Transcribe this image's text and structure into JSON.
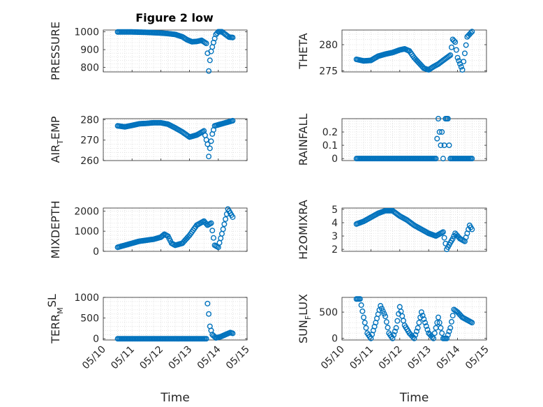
{
  "figure": {
    "title": "Figure 2 low",
    "xlabel": "Time"
  },
  "colors": {
    "marker": "#0072BD",
    "axis": "#262626",
    "grid": "#dcdcdc",
    "background": "#ffffff"
  },
  "chart_data": [
    {
      "id": "pressure",
      "type": "scatter",
      "title": "Figure 2 low",
      "ylabel": "PRESSURE",
      "ylim": [
        775,
        1010
      ],
      "yticks": [
        800,
        900,
        1000
      ],
      "xlim": [
        "05/10",
        "05/15"
      ],
      "xticks": [],
      "xlabel": "",
      "grid": true,
      "marker": "circle",
      "x": [
        "05/10 12:00",
        "05/10 18:00",
        "05/11 00:00",
        "05/11 06:00",
        "05/11 12:00",
        "05/11 18:00",
        "05/12 00:00",
        "05/12 06:00",
        "05/12 12:00",
        "05/12 18:00",
        "05/12 22:00",
        "05/13 02:00",
        "05/13 06:00",
        "05/13 10:00",
        "05/13 14:00",
        "05/13 15:00",
        "05/13 16:00",
        "05/13 17:00",
        "05/13 18:00",
        "05/13 20:00",
        "05/13 22:00",
        "05/14 00:00",
        "05/14 03:00",
        "05/14 06:00",
        "05/14 09:00",
        "05/14 12:00"
      ],
      "y": [
        999,
        999,
        999,
        998,
        997,
        995,
        993,
        990,
        985,
        972,
        955,
        944,
        946,
        952,
        935,
        880,
        780,
        840,
        890,
        940,
        985,
        1000,
        1000,
        985,
        970,
        968
      ]
    },
    {
      "id": "theta",
      "type": "scatter",
      "ylabel": "THETA",
      "ylim": [
        274.8,
        282.8
      ],
      "yticks": [
        275,
        280
      ],
      "xlim": [
        "05/10",
        "05/15"
      ],
      "xticks": [],
      "xlabel": "",
      "grid": true,
      "marker": "circle",
      "x": [
        "05/10 12:00",
        "05/10 18:00",
        "05/11 00:00",
        "05/11 06:00",
        "05/11 12:00",
        "05/11 18:00",
        "05/12 00:00",
        "05/12 04:00",
        "05/12 08:00",
        "05/12 12:00",
        "05/12 16:00",
        "05/12 20:00",
        "05/13 00:00",
        "05/13 04:00",
        "05/13 08:00",
        "05/13 12:00",
        "05/13 15:00",
        "05/13 18:00",
        "05/13 20:00",
        "05/13 22:00",
        "05/14 00:00",
        "05/14 04:00",
        "05/14 08:00",
        "05/14 12:00"
      ],
      "y": [
        277.2,
        276.9,
        277.0,
        277.8,
        278.2,
        278.5,
        279.0,
        279.2,
        278.8,
        277.5,
        276.5,
        275.5,
        275.2,
        275.8,
        276.3,
        277.0,
        277.5,
        278.0,
        281.0,
        280.5,
        277.5,
        275.2,
        281.5,
        282.5
      ]
    },
    {
      "id": "air_temp",
      "type": "scatter",
      "ylabel": "AIR_TEMP",
      "ylim": [
        260,
        280.5
      ],
      "yticks": [
        260,
        270,
        280
      ],
      "xlim": [
        "05/10",
        "05/15"
      ],
      "xticks": [],
      "xlabel": "",
      "grid": true,
      "marker": "circle",
      "x": [
        "05/10 12:00",
        "05/10 18:00",
        "05/11 00:00",
        "05/11 06:00",
        "05/11 12:00",
        "05/11 18:00",
        "05/12 00:00",
        "05/12 06:00",
        "05/12 12:00",
        "05/12 18:00",
        "05/13 00:00",
        "05/13 06:00",
        "05/13 12:00",
        "05/13 15:00",
        "05/13 16:00",
        "05/13 17:00",
        "05/13 19:00",
        "05/13 21:00",
        "05/14 00:00",
        "05/14 06:00",
        "05/14 12:00"
      ],
      "y": [
        277,
        276.5,
        277.2,
        278,
        278.2,
        278.5,
        278.5,
        277.8,
        276,
        274,
        271.5,
        272.5,
        274.5,
        268,
        262,
        266,
        273,
        277,
        277.5,
        278.5,
        279.5
      ]
    },
    {
      "id": "rainfall",
      "type": "scatter",
      "ylabel": "RAINFALL",
      "ylim": [
        -0.015,
        0.3
      ],
      "yticks": [
        0,
        0.1,
        0.2
      ],
      "xlim": [
        "05/10",
        "05/15"
      ],
      "xticks": [],
      "xlabel": "",
      "grid": true,
      "marker": "circle",
      "x": [
        "05/10 12:00",
        "05/10 18:00",
        "05/11 00:00",
        "05/11 06:00",
        "05/11 12:00",
        "05/11 18:00",
        "05/12 00:00",
        "05/12 06:00",
        "05/12 12:00",
        "05/12 18:00",
        "05/13 00:00",
        "05/13 06:00",
        "05/13 08:00",
        "05/13 09:00",
        "05/13 10:00",
        "05/13 11:00",
        "05/13 12:00",
        "05/13 13:00",
        "05/13 14:00",
        "05/13 15:00",
        "05/13 16:00",
        "05/13 17:00",
        "05/13 18:00",
        "05/14 00:00",
        "05/14 06:00",
        "05/14 12:00"
      ],
      "y": [
        0,
        0,
        0,
        0,
        0,
        0,
        0,
        0,
        0,
        0,
        0,
        0,
        0.3,
        0.2,
        0.1,
        0.2,
        0,
        0.1,
        0.3,
        0.3,
        0.3,
        0.1,
        0,
        0,
        0,
        0
      ]
    },
    {
      "id": "mixdepth",
      "type": "scatter",
      "ylabel": "MIXDEPTH",
      "ylim": [
        0,
        2150
      ],
      "yticks": [
        0,
        1000,
        2000
      ],
      "xlim": [
        "05/10",
        "05/15"
      ],
      "xticks": [],
      "xlabel": "",
      "grid": true,
      "marker": "circle",
      "x": [
        "05/10 12:00",
        "05/10 18:00",
        "05/11 00:00",
        "05/11 06:00",
        "05/11 12:00",
        "05/11 18:00",
        "05/12 00:00",
        "05/12 03:00",
        "05/12 06:00",
        "05/12 09:00",
        "05/12 12:00",
        "05/12 18:00",
        "05/13 00:00",
        "05/13 06:00",
        "05/13 12:00",
        "05/13 15:00",
        "05/13 18:00",
        "05/13 21:00",
        "05/14 00:00",
        "05/14 04:00",
        "05/14 08:00",
        "05/14 12:00"
      ],
      "y": [
        200,
        300,
        400,
        500,
        550,
        600,
        700,
        850,
        750,
        400,
        300,
        400,
        800,
        1300,
        1500,
        1300,
        1400,
        300,
        200,
        1100,
        2100,
        1700
      ]
    },
    {
      "id": "h2omixra",
      "type": "scatter",
      "ylabel": "H2OMIXRA",
      "ylim": [
        1.85,
        5.1
      ],
      "yticks": [
        2,
        3,
        4,
        5
      ],
      "xlim": [
        "05/10",
        "05/15"
      ],
      "xticks": [],
      "xlabel": "",
      "grid": true,
      "marker": "circle",
      "x": [
        "05/10 12:00",
        "05/10 18:00",
        "05/11 00:00",
        "05/11 06:00",
        "05/11 12:00",
        "05/11 18:00",
        "05/12 00:00",
        "05/12 06:00",
        "05/12 12:00",
        "05/12 18:00",
        "05/13 00:00",
        "05/13 06:00",
        "05/13 12:00",
        "05/13 15:00",
        "05/13 18:00",
        "05/13 20:00",
        "05/13 22:00",
        "05/14 02:00",
        "05/14 06:00",
        "05/14 10:00",
        "05/14 12:00"
      ],
      "y": [
        3.9,
        4.1,
        4.4,
        4.7,
        4.9,
        4.9,
        4.5,
        4.2,
        3.8,
        3.5,
        3.2,
        3.0,
        3.3,
        2.0,
        2.5,
        2.8,
        3.2,
        2.8,
        2.6,
        3.8,
        3.5
      ]
    },
    {
      "id": "terr_msl",
      "type": "scatter",
      "ylabel": "TERR_MSL",
      "ylim": [
        -30,
        1000
      ],
      "yticks": [
        0,
        500,
        1000
      ],
      "xlim": [
        "05/10",
        "05/15"
      ],
      "xticks": [
        "05/10",
        "05/11",
        "05/12",
        "05/13",
        "05/14",
        "05/15"
      ],
      "xlabel": "Time",
      "grid": true,
      "marker": "circle",
      "x": [
        "05/10 12:00",
        "05/11 00:00",
        "05/11 12:00",
        "05/12 00:00",
        "05/12 12:00",
        "05/13 00:00",
        "05/13 12:00",
        "05/13 14:00",
        "05/13 15:00",
        "05/13 16:00",
        "05/13 17:00",
        "05/13 19:00",
        "05/13 22:00",
        "05/14 02:00",
        "05/14 06:00",
        "05/14 10:00",
        "05/14 12:00"
      ],
      "y": [
        0,
        0,
        0,
        0,
        0,
        0,
        0,
        0,
        850,
        600,
        300,
        100,
        20,
        50,
        100,
        150,
        130
      ]
    },
    {
      "id": "sun_flux",
      "type": "scatter",
      "ylabel": "SUN_FLUX",
      "ylim": [
        -30,
        780
      ],
      "yticks": [
        0,
        500
      ],
      "xlim": [
        "05/10",
        "05/15"
      ],
      "xticks": [
        "05/10",
        "05/11",
        "05/12",
        "05/13",
        "05/14",
        "05/15"
      ],
      "xlabel": "Time",
      "grid": true,
      "marker": "circle",
      "x": [
        "05/10 12:00",
        "05/10 15:00",
        "05/10 18:00",
        "05/10 21:00",
        "05/11 00:00",
        "05/11 04:00",
        "05/11 08:00",
        "05/11 12:00",
        "05/11 15:00",
        "05/11 18:00",
        "05/11 21:00",
        "05/12 00:00",
        "05/12 04:00",
        "05/12 08:00",
        "05/12 12:00",
        "05/12 15:00",
        "05/12 18:00",
        "05/12 21:00",
        "05/13 00:00",
        "05/13 04:00",
        "05/13 08:00",
        "05/13 12:00",
        "05/13 15:00",
        "05/13 18:00",
        "05/13 21:00",
        "05/14 00:00",
        "05/14 04:00",
        "05/14 08:00",
        "05/14 12:00"
      ],
      "y": [
        750,
        750,
        400,
        100,
        0,
        300,
        620,
        420,
        100,
        0,
        200,
        600,
        250,
        100,
        0,
        200,
        500,
        300,
        100,
        0,
        400,
        0,
        0,
        200,
        550,
        500,
        400,
        350,
        300
      ]
    }
  ]
}
